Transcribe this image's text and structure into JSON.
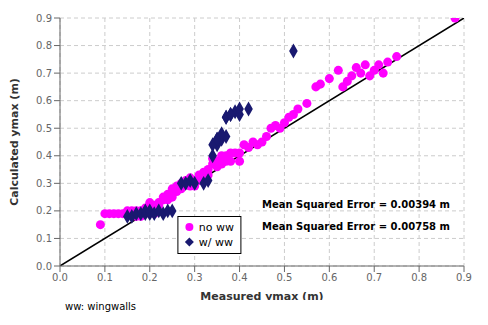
{
  "chart_data": {
    "type": "scatter",
    "xlabel": "Measured ymax (m)",
    "ylabel": "Calculated ymax (m)",
    "xlim": [
      0,
      0.9
    ],
    "ylim": [
      0,
      0.9
    ],
    "xticks": [
      {
        "value": 0,
        "label": "0.0"
      },
      0.1,
      0.2,
      0.3,
      0.4,
      0.5,
      0.6,
      0.7,
      0.8,
      0.9
    ],
    "yticks": [
      {
        "value": 0,
        "label": "0.0"
      },
      0.1,
      0.2,
      0.3,
      0.4,
      0.5,
      0.6,
      0.7,
      0.8,
      0.9
    ],
    "grid": true,
    "legend": "lower center",
    "series": [
      {
        "name": "no ww",
        "color": "#FF00FF",
        "marker": "circle",
        "x": [
          0.09,
          0.1,
          0.11,
          0.12,
          0.13,
          0.14,
          0.15,
          0.16,
          0.16,
          0.17,
          0.17,
          0.18,
          0.18,
          0.18,
          0.19,
          0.19,
          0.19,
          0.2,
          0.2,
          0.2,
          0.2,
          0.21,
          0.21,
          0.22,
          0.22,
          0.23,
          0.23,
          0.24,
          0.24,
          0.25,
          0.25,
          0.25,
          0.26,
          0.26,
          0.27,
          0.27,
          0.28,
          0.28,
          0.29,
          0.29,
          0.3,
          0.3,
          0.3,
          0.31,
          0.31,
          0.32,
          0.32,
          0.33,
          0.33,
          0.34,
          0.34,
          0.35,
          0.35,
          0.36,
          0.36,
          0.37,
          0.37,
          0.38,
          0.38,
          0.39,
          0.4,
          0.4,
          0.41,
          0.42,
          0.43,
          0.44,
          0.45,
          0.46,
          0.47,
          0.48,
          0.49,
          0.5,
          0.51,
          0.52,
          0.53,
          0.55,
          0.57,
          0.58,
          0.6,
          0.62,
          0.63,
          0.64,
          0.65,
          0.66,
          0.67,
          0.68,
          0.69,
          0.7,
          0.71,
          0.72,
          0.73,
          0.75,
          0.88
        ],
        "values": [
          0.15,
          0.19,
          0.19,
          0.19,
          0.19,
          0.19,
          0.2,
          0.19,
          0.2,
          0.18,
          0.2,
          0.18,
          0.19,
          0.2,
          0.19,
          0.2,
          0.21,
          0.2,
          0.21,
          0.22,
          0.23,
          0.19,
          0.22,
          0.22,
          0.23,
          0.24,
          0.25,
          0.24,
          0.26,
          0.25,
          0.27,
          0.28,
          0.27,
          0.29,
          0.28,
          0.3,
          0.3,
          0.31,
          0.29,
          0.32,
          0.29,
          0.3,
          0.31,
          0.31,
          0.33,
          0.32,
          0.34,
          0.33,
          0.35,
          0.37,
          0.39,
          0.36,
          0.38,
          0.37,
          0.4,
          0.38,
          0.4,
          0.38,
          0.41,
          0.41,
          0.38,
          0.41,
          0.44,
          0.43,
          0.45,
          0.44,
          0.45,
          0.47,
          0.5,
          0.51,
          0.5,
          0.52,
          0.54,
          0.55,
          0.57,
          0.59,
          0.65,
          0.66,
          0.68,
          0.71,
          0.65,
          0.67,
          0.69,
          0.72,
          0.7,
          0.73,
          0.69,
          0.71,
          0.73,
          0.7,
          0.74,
          0.76,
          0.9
        ]
      },
      {
        "name": "w/ ww",
        "color": "#191970",
        "marker": "diamond",
        "x": [
          0.15,
          0.16,
          0.17,
          0.18,
          0.19,
          0.19,
          0.2,
          0.2,
          0.21,
          0.22,
          0.23,
          0.24,
          0.25,
          0.27,
          0.28,
          0.29,
          0.3,
          0.32,
          0.33,
          0.34,
          0.35,
          0.35,
          0.36,
          0.36,
          0.37,
          0.37,
          0.38,
          0.39,
          0.4,
          0.4,
          0.42,
          0.34,
          0.35,
          0.36,
          0.37,
          0.38,
          0.52
        ],
        "values": [
          0.18,
          0.18,
          0.19,
          0.19,
          0.19,
          0.2,
          0.19,
          0.2,
          0.19,
          0.2,
          0.19,
          0.2,
          0.2,
          0.3,
          0.3,
          0.31,
          0.3,
          0.3,
          0.31,
          0.4,
          0.44,
          0.46,
          0.46,
          0.47,
          0.47,
          0.54,
          0.55,
          0.56,
          0.55,
          0.57,
          0.57,
          0.44,
          0.46,
          0.48,
          0.54,
          0.55,
          0.78
        ]
      }
    ],
    "lines": [
      {
        "type": "line",
        "x": [
          0,
          0.9
        ],
        "values": [
          0,
          0.9
        ],
        "color": "#000000"
      }
    ],
    "annotations": [
      "Mean Squared Error = 0.00394 m",
      "Mean Squared Error = 0.00758 m"
    ],
    "footnote": "ww: wingwalls"
  }
}
